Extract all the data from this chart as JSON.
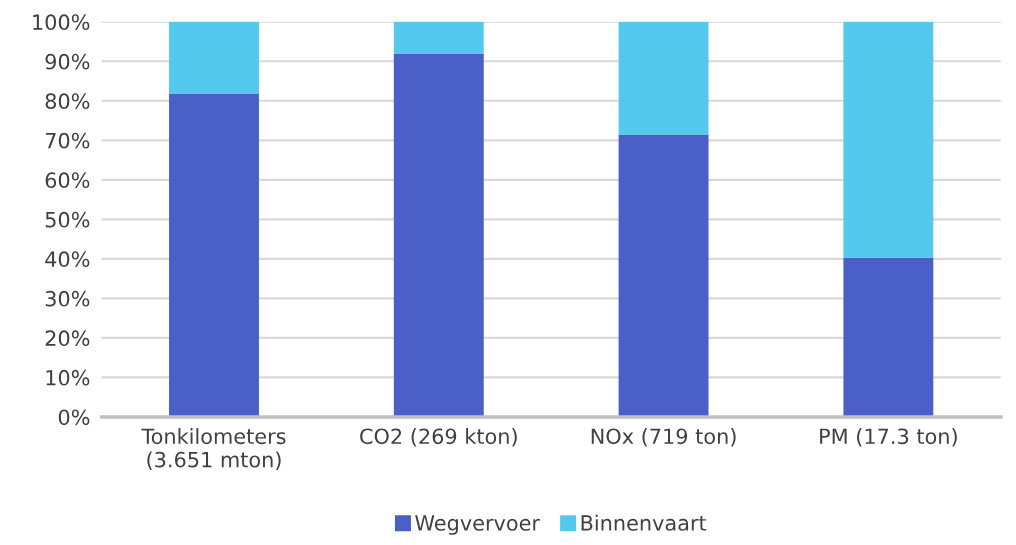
{
  "chart_data": {
    "type": "bar",
    "stacked": true,
    "categories": [
      "Tonkilometers\n(3.651 mton)",
      "CO2 (269 kton)",
      "NOx (719 ton)",
      "PM (17.3 ton)"
    ],
    "series": [
      {
        "name": "Wegvervoer",
        "color": "#4a5fc8",
        "values": [
          81.7,
          92,
          71.5,
          40.3
        ]
      },
      {
        "name": "Binnenvaart",
        "color": "#55c8ee",
        "values": [
          18.3,
          8,
          28.5,
          59.7
        ]
      }
    ],
    "ylim": [
      0,
      100
    ],
    "yticks": [
      {
        "value": 0,
        "label": "0%"
      },
      {
        "value": 10,
        "label": "10%"
      },
      {
        "value": 20,
        "label": "20%"
      },
      {
        "value": 30,
        "label": "30%"
      },
      {
        "value": 40,
        "label": "40%"
      },
      {
        "value": 50,
        "label": "50%"
      },
      {
        "value": 60,
        "label": "60%"
      },
      {
        "value": 70,
        "label": "70%"
      },
      {
        "value": 80,
        "label": "80%"
      },
      {
        "value": 90,
        "label": "90%"
      },
      {
        "value": 100,
        "label": "100%"
      }
    ],
    "grid": "y",
    "legend": "bottom"
  }
}
